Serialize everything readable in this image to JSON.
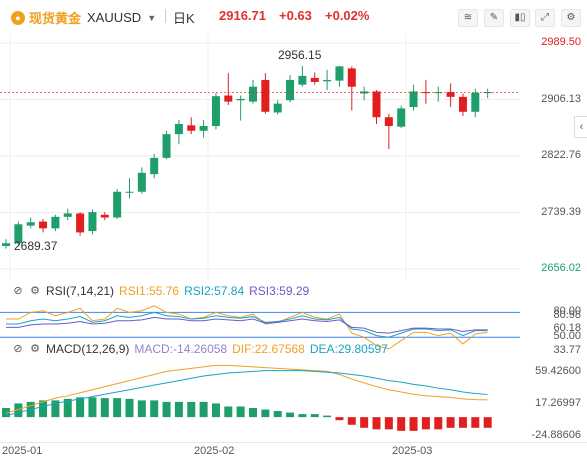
{
  "header": {
    "symbol_name": "现货黄金",
    "symbol_code": "XAUUSD",
    "period": "日K",
    "price": "2916.71",
    "change": "+0.63",
    "change_pct": "+0.02%",
    "tools": [
      "indicator-icon",
      "draw-icon",
      "candle-type-icon",
      "fullscreen-icon",
      "settings-icon"
    ]
  },
  "main_chart": {
    "y_labels": [
      "2989.50",
      "2906.13",
      "2822.76",
      "2739.39",
      "2656.02"
    ],
    "high_label": "2956.15",
    "low_label": "2689.37",
    "colors": {
      "up": "#1e9e6a",
      "down": "#e02020",
      "price_line": "#e02020"
    }
  },
  "rsi": {
    "title": "RSI(7,14,21)",
    "rsi1": "RSI1:55.76",
    "rsi2": "RSI2:57.84",
    "rsi3": "RSI3:59.29",
    "y_labels": [
      "80.00",
      "60.18",
      "50.00",
      "33.77"
    ],
    "overlap_label": "80.98"
  },
  "macd": {
    "title": "MACD(12,26,9)",
    "macd": "MACD:-14.26058",
    "dif": "DIF:22.67568",
    "dea": "DEA:29.80597",
    "y_labels": [
      "59.42600",
      "17.26997",
      "-24.88606"
    ]
  },
  "x_axis": [
    "2025-01",
    "2025-02",
    "2025-03"
  ],
  "chart_data": {
    "type": "candlestick",
    "candles": [
      {
        "o": 2690,
        "c": 2694,
        "h": 2700,
        "l": 2686
      },
      {
        "o": 2694,
        "c": 2722,
        "h": 2726,
        "l": 2692
      },
      {
        "o": 2720,
        "c": 2725,
        "h": 2732,
        "l": 2716
      },
      {
        "o": 2726,
        "c": 2716,
        "h": 2730,
        "l": 2710
      },
      {
        "o": 2716,
        "c": 2733,
        "h": 2736,
        "l": 2712
      },
      {
        "o": 2733,
        "c": 2738,
        "h": 2745,
        "l": 2728
      },
      {
        "o": 2738,
        "c": 2710,
        "h": 2740,
        "l": 2705
      },
      {
        "o": 2712,
        "c": 2740,
        "h": 2744,
        "l": 2707
      },
      {
        "o": 2736,
        "c": 2732,
        "h": 2740,
        "l": 2728
      },
      {
        "o": 2732,
        "c": 2770,
        "h": 2774,
        "l": 2730
      },
      {
        "o": 2770,
        "c": 2770,
        "h": 2790,
        "l": 2760
      },
      {
        "o": 2770,
        "c": 2798,
        "h": 2806,
        "l": 2767
      },
      {
        "o": 2796,
        "c": 2820,
        "h": 2826,
        "l": 2790
      },
      {
        "o": 2820,
        "c": 2855,
        "h": 2860,
        "l": 2818
      },
      {
        "o": 2855,
        "c": 2870,
        "h": 2876,
        "l": 2840
      },
      {
        "o": 2868,
        "c": 2860,
        "h": 2880,
        "l": 2855
      },
      {
        "o": 2860,
        "c": 2867,
        "h": 2876,
        "l": 2850
      },
      {
        "o": 2867,
        "c": 2911,
        "h": 2916,
        "l": 2862
      },
      {
        "o": 2912,
        "c": 2903,
        "h": 2945,
        "l": 2898
      },
      {
        "o": 2905,
        "c": 2907,
        "h": 2912,
        "l": 2875
      },
      {
        "o": 2903,
        "c": 2925,
        "h": 2935,
        "l": 2900
      },
      {
        "o": 2935,
        "c": 2888,
        "h": 2945,
        "l": 2885
      },
      {
        "o": 2887,
        "c": 2900,
        "h": 2905,
        "l": 2884
      },
      {
        "o": 2905,
        "c": 2935,
        "h": 2942,
        "l": 2902
      },
      {
        "o": 2928,
        "c": 2941,
        "h": 2956,
        "l": 2925
      },
      {
        "o": 2938,
        "c": 2932,
        "h": 2946,
        "l": 2928
      },
      {
        "o": 2933,
        "c": 2935,
        "h": 2950,
        "l": 2920
      },
      {
        "o": 2934,
        "c": 2955,
        "h": 2956,
        "l": 2925
      },
      {
        "o": 2952,
        "c": 2925,
        "h": 2955,
        "l": 2890
      },
      {
        "o": 2915,
        "c": 2918,
        "h": 2925,
        "l": 2905
      },
      {
        "o": 2918,
        "c": 2880,
        "h": 2920,
        "l": 2870
      },
      {
        "o": 2880,
        "c": 2867,
        "h": 2885,
        "l": 2833
      },
      {
        "o": 2866,
        "c": 2893,
        "h": 2897,
        "l": 2864
      },
      {
        "o": 2895,
        "c": 2918,
        "h": 2928,
        "l": 2890
      },
      {
        "o": 2917,
        "c": 2916,
        "h": 2935,
        "l": 2900
      },
      {
        "o": 2917,
        "c": 2917,
        "h": 2925,
        "l": 2903
      },
      {
        "o": 2917,
        "c": 2910,
        "h": 2930,
        "l": 2895
      },
      {
        "o": 2910,
        "c": 2888,
        "h": 2915,
        "l": 2882
      },
      {
        "o": 2888,
        "c": 2916,
        "h": 2922,
        "l": 2880
      },
      {
        "o": 2916,
        "c": 2917,
        "h": 2922,
        "l": 2908
      }
    ],
    "price_line": 2916.71,
    "rsi_lines": {
      "rsi1": [
        72,
        72,
        80,
        82,
        76,
        80,
        85,
        70,
        72,
        85,
        80,
        82,
        88,
        80,
        78,
        72,
        74,
        80,
        76,
        74,
        78,
        66,
        68,
        74,
        80,
        74,
        72,
        78,
        55,
        50,
        40,
        36,
        46,
        56,
        56,
        52,
        55,
        42,
        54,
        56
      ],
      "rsi2": [
        66,
        66,
        70,
        72,
        70,
        72,
        75,
        68,
        70,
        76,
        74,
        76,
        80,
        76,
        75,
        72,
        73,
        76,
        74,
        73,
        75,
        68,
        69,
        72,
        76,
        72,
        71,
        74,
        60,
        58,
        52,
        50,
        55,
        60,
        60,
        58,
        59,
        52,
        58,
        58
      ],
      "rsi3": [
        62,
        62,
        65,
        66,
        66,
        67,
        69,
        66,
        67,
        70,
        70,
        71,
        74,
        72,
        72,
        70,
        70,
        72,
        71,
        70,
        72,
        67,
        68,
        70,
        72,
        70,
        69,
        71,
        62,
        61,
        56,
        55,
        58,
        61,
        61,
        60,
        60,
        57,
        59,
        59
      ]
    },
    "macd": {
      "histogram": [
        12,
        18,
        20,
        22,
        22,
        24,
        26,
        26,
        25,
        25,
        24,
        22,
        22,
        20,
        20,
        20,
        20,
        18,
        14,
        14,
        12,
        10,
        8,
        6,
        4,
        4,
        2,
        -4,
        -10,
        -14,
        -16,
        -16,
        -18,
        -18,
        -16,
        -16,
        -14,
        -14,
        -14,
        -14
      ],
      "dif": [
        5,
        10,
        15,
        20,
        25,
        28,
        32,
        36,
        40,
        44,
        48,
        52,
        56,
        60,
        62,
        64,
        66,
        68,
        68,
        67,
        66,
        65,
        64,
        63,
        62,
        61,
        60,
        56,
        50,
        45,
        40,
        36,
        33,
        30,
        28,
        27,
        26,
        24,
        23,
        22.7
      ],
      "dea": [
        2,
        6,
        10,
        14,
        18,
        21,
        24,
        27,
        30,
        33,
        36,
        39,
        42,
        45,
        48,
        51,
        54,
        56,
        58,
        59,
        60,
        61,
        61,
        61,
        61,
        60,
        59,
        58,
        56,
        54,
        51,
        48,
        46,
        43,
        41,
        38,
        36,
        33,
        31,
        29.8
      ]
    }
  }
}
